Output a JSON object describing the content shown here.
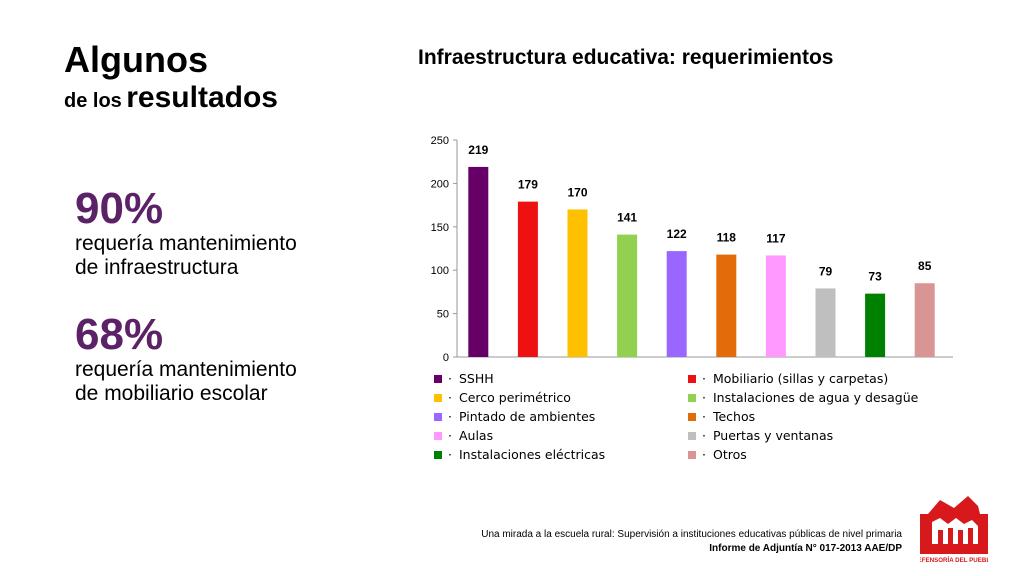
{
  "slide": {
    "title_line1": "Algunos",
    "title_line2_small": "de los",
    "title_line2_big": "resultados",
    "stats": [
      {
        "percent": "90%",
        "description": "requería mantenimiento\nde infraestructura"
      },
      {
        "percent": "68%",
        "description": "requería mantenimiento\nde mobiliario escolar"
      }
    ],
    "footer_line1": "Una mirada a la escuela rural: Supervisión a instituciones educativas públicas de nivel primaria",
    "footer_line2": "Informe de Adjuntía N° 017-2013 AAE/DP",
    "logo_text": "DEFENSORÍA DEL PUEBLO"
  },
  "chart_data": {
    "type": "bar",
    "title": "Infraestructura educativa: requerimientos",
    "categories": [
      "SSHH",
      "Mobiliario (sillas y carpetas)",
      "Cerco perimétrico",
      "Instalaciones de agua y desagüe",
      "Pintado de ambientes",
      "Techos",
      "Aulas",
      "Puertas y ventanas",
      "Instalaciones eléctricas",
      "Otros"
    ],
    "values": [
      219,
      179,
      170,
      141,
      122,
      118,
      117,
      79,
      73,
      85
    ],
    "colors": [
      "#660066",
      "#ee1111",
      "#ffc000",
      "#92d050",
      "#9966ff",
      "#e36c0a",
      "#ff99ff",
      "#bfbfbf",
      "#008000",
      "#d99594"
    ],
    "ylim": [
      0,
      250
    ],
    "yticks": [
      0,
      50,
      100,
      150,
      200,
      250
    ],
    "grid": false,
    "legend_position": "bottom",
    "data_labels": true
  }
}
